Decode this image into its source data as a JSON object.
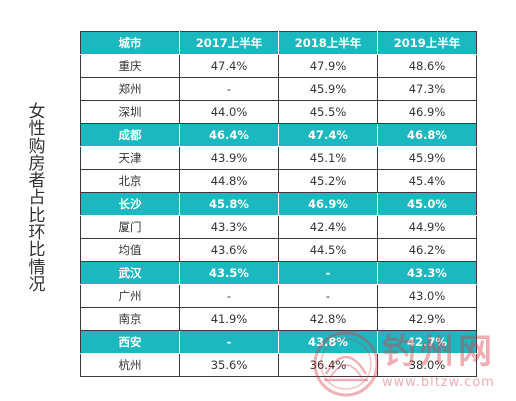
{
  "side_title": "女性购房者占比环比情况",
  "table": {
    "headers": [
      "城市",
      "2017上半年",
      "2018上半年",
      "2019上半年"
    ],
    "rows": [
      {
        "city": "重庆",
        "y2017": "47.4%",
        "y2018": "47.9%",
        "y2019": "48.6%",
        "highlight": false
      },
      {
        "city": "郑州",
        "y2017": "-",
        "y2018": "45.9%",
        "y2019": "47.3%",
        "highlight": false
      },
      {
        "city": "深圳",
        "y2017": "44.0%",
        "y2018": "45.5%",
        "y2019": "46.9%",
        "highlight": false
      },
      {
        "city": "成都",
        "y2017": "46.4%",
        "y2018": "47.4%",
        "y2019": "46.8%",
        "highlight": true
      },
      {
        "city": "天津",
        "y2017": "43.9%",
        "y2018": "45.1%",
        "y2019": "45.9%",
        "highlight": false
      },
      {
        "city": "北京",
        "y2017": "44.8%",
        "y2018": "45.2%",
        "y2019": "45.4%",
        "highlight": false
      },
      {
        "city": "长沙",
        "y2017": "45.8%",
        "y2018": "46.9%",
        "y2019": "45.0%",
        "highlight": true
      },
      {
        "city": "厦门",
        "y2017": "43.3%",
        "y2018": "42.4%",
        "y2019": "44.9%",
        "highlight": false
      },
      {
        "city": "均值",
        "y2017": "43.6%",
        "y2018": "44.5%",
        "y2019": "46.2%",
        "highlight": false
      },
      {
        "city": "武汉",
        "y2017": "43.5%",
        "y2018": "-",
        "y2019": "43.3%",
        "highlight": true
      },
      {
        "city": "广州",
        "y2017": "-",
        "y2018": "-",
        "y2019": "43.0%",
        "highlight": false
      },
      {
        "city": "南京",
        "y2017": "41.9%",
        "y2018": "42.8%",
        "y2019": "42.9%",
        "highlight": false
      },
      {
        "city": "西安",
        "y2017": "-",
        "y2018": "43.8%",
        "y2019": "42.7%",
        "highlight": true
      },
      {
        "city": "杭州",
        "y2017": "35.6%",
        "y2018": "36.4%",
        "y2019": "38.0%",
        "highlight": false
      }
    ]
  },
  "watermark": {
    "name": "钓州网",
    "url": "www.bltzw.com"
  },
  "colors": {
    "accent": "#1bb8bf",
    "text": "#333333",
    "border": "#3a3a3a",
    "watermark": "#d73c46"
  }
}
